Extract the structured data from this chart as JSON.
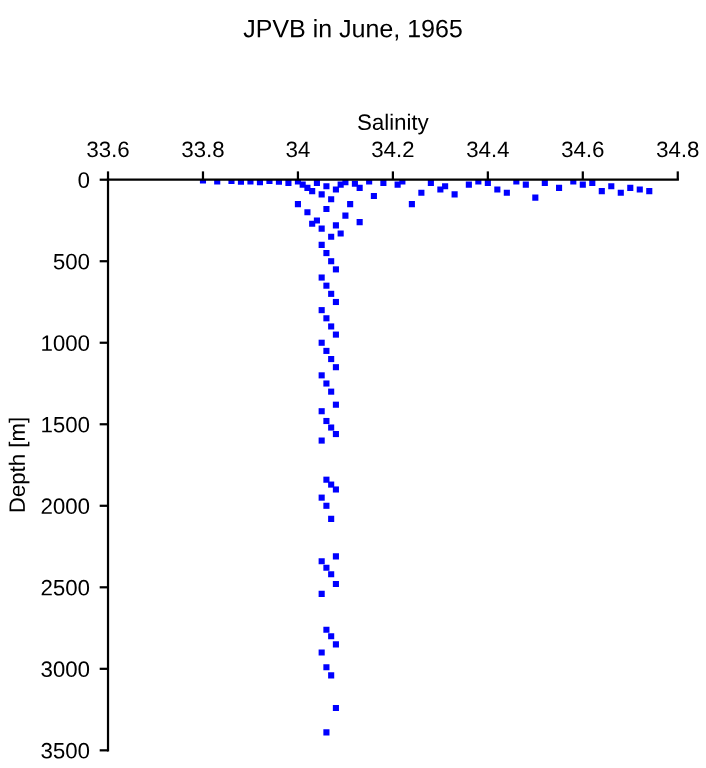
{
  "chart_data": {
    "type": "scatter",
    "title": "JPVB in June, 1965",
    "xlabel": "Salinity",
    "ylabel": "Depth [m]",
    "xlim": [
      33.6,
      34.8
    ],
    "xticks": [
      33.6,
      33.8,
      34,
      34.2,
      34.4,
      34.6,
      34.8
    ],
    "ylim": [
      3500,
      0
    ],
    "yticks": [
      0,
      500,
      1000,
      1500,
      2000,
      2500,
      3000,
      3500
    ],
    "grid": false,
    "marker": "square",
    "legend": false,
    "series": [
      {
        "color": "#0000ff",
        "x": [
          33.8,
          33.83,
          33.86,
          33.88,
          33.9,
          33.92,
          33.94,
          33.96,
          33.98,
          34.0,
          34.01,
          34.02,
          34.03,
          34.04,
          34.05,
          34.06,
          34.07,
          34.08,
          34.09,
          34.1,
          34.12,
          34.13,
          34.15,
          34.16,
          34.18,
          34.21,
          34.22,
          34.24,
          34.26,
          34.28,
          34.3,
          34.31,
          34.33,
          34.36,
          34.38,
          34.4,
          34.42,
          34.44,
          34.46,
          34.48,
          34.5,
          34.52,
          34.55,
          34.58,
          34.6,
          34.62,
          34.64,
          34.66,
          34.68,
          34.7,
          34.72,
          34.74,
          34.0,
          34.02,
          34.04,
          34.06,
          34.08,
          34.1,
          34.13,
          34.05,
          34.07,
          34.03,
          34.11,
          34.09,
          34.05,
          34.06,
          34.07,
          34.08,
          34.05,
          34.06,
          34.07,
          34.08,
          34.05,
          34.06,
          34.07,
          34.08,
          34.05,
          34.06,
          34.07,
          34.08,
          34.05,
          34.06,
          34.07,
          34.08,
          34.05,
          34.06,
          34.07,
          34.08,
          34.05,
          34.06,
          34.07,
          34.08,
          34.05,
          34.06,
          34.07,
          34.08,
          34.05,
          34.06,
          34.07,
          34.08,
          34.05,
          34.06,
          34.07,
          34.08,
          34.05,
          34.06,
          34.07,
          34.08,
          34.06
        ],
        "values": [
          5,
          10,
          8,
          12,
          10,
          15,
          8,
          12,
          20,
          10,
          30,
          50,
          70,
          20,
          90,
          40,
          120,
          60,
          30,
          15,
          25,
          50,
          10,
          100,
          20,
          30,
          10,
          150,
          80,
          20,
          60,
          40,
          90,
          30,
          10,
          20,
          60,
          80,
          10,
          30,
          110,
          20,
          50,
          10,
          30,
          20,
          70,
          40,
          80,
          50,
          60,
          70,
          150,
          200,
          250,
          180,
          280,
          220,
          260,
          300,
          350,
          270,
          150,
          330,
          400,
          450,
          500,
          550,
          600,
          650,
          700,
          750,
          800,
          850,
          900,
          950,
          1000,
          1050,
          1100,
          1150,
          1200,
          1250,
          1300,
          1380,
          1420,
          1480,
          1520,
          1560,
          1600,
          1840,
          1870,
          1900,
          1950,
          2000,
          2080,
          2310,
          2340,
          2380,
          2420,
          2480,
          2540,
          2760,
          2800,
          2850,
          2900,
          2990,
          3040,
          3240,
          3390
        ]
      }
    ]
  }
}
